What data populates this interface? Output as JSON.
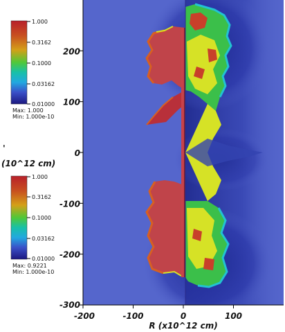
{
  "chart_data": {
    "type": "heatmap",
    "title": "",
    "xlabel": "R (x10^12 cm)",
    "ylabel_fragment": "(10^12 cm)",
    "ylabel_stub": "'",
    "xlim": [
      -200,
      200
    ],
    "ylim": [
      -300,
      300
    ],
    "x_ticks": [
      -200,
      -100,
      0,
      100
    ],
    "x_tick_labels": [
      "-200",
      "-100",
      "0",
      "100"
    ],
    "y_ticks": [
      200,
      100,
      0,
      -100,
      -200,
      -300
    ],
    "y_tick_labels": [
      "200",
      "100",
      "0",
      "-100",
      "-200",
      "-300"
    ],
    "colorbars": [
      {
        "name": "upper",
        "scale": "log",
        "tick_labels": [
          "1.000",
          "0.3162",
          "0.1000",
          "0.03162",
          "0.01000"
        ],
        "max_text": "Max: 1.000",
        "min_text": "Min: 1.000e-10"
      },
      {
        "name": "lower",
        "scale": "log",
        "tick_labels": [
          "1.000",
          "0.3162",
          "0.1000",
          "0.03162",
          "0.01000"
        ],
        "max_text": "Max: 0.9221",
        "min_text": "Min: 1.000e-10"
      }
    ],
    "colormap": [
      "#2a1a8a",
      "#4a57c8",
      "#19c6d6",
      "#3bd24a",
      "#d4e21a",
      "#c8521a",
      "#b8202a",
      "#c04048"
    ],
    "background_color": "#5566cc",
    "field_colors": {
      "core": "#c0444a",
      "outer_blue": "#5060c8",
      "dark_blue": "#26309a",
      "yellow": "#d6e226",
      "green": "#5ac84a",
      "cyan": "#22c2d2",
      "orange": "#d86020"
    }
  }
}
